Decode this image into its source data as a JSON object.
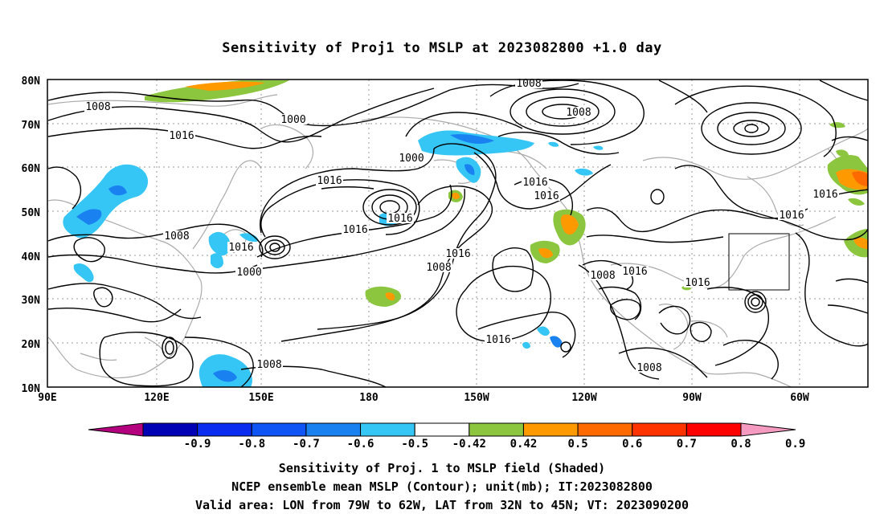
{
  "title": "Sensitivity of Proj1 to MSLP at 2023082800 +1.0 day",
  "lat_labels": [
    "80N",
    "70N",
    "60N",
    "50N",
    "40N",
    "30N",
    "20N",
    "10N"
  ],
  "lon_labels": [
    "90E",
    "120E",
    "150E",
    "180",
    "150W",
    "120W",
    "90W",
    "60W"
  ],
  "contour_labels": [
    "1008",
    "1000",
    "1016",
    "1008",
    "1016",
    "1000",
    "1008",
    "1016",
    "1016",
    "1016",
    "1000",
    "1008",
    "1016",
    "1016",
    "1016",
    "1016",
    "1016",
    "1008",
    "1016",
    "1008",
    "1016",
    "1016",
    "1008",
    "1008"
  ],
  "colorbar": {
    "labels": [
      "-0.9",
      "-0.8",
      "-0.7",
      "-0.6",
      "-0.5",
      "-0.42",
      "0.42",
      "0.5",
      "0.6",
      "0.7",
      "0.8",
      "0.9"
    ],
    "colors": [
      "#b4007f",
      "#0000b4",
      "#0a2cf0",
      "#0f55f5",
      "#1a82f0",
      "#35c6f5",
      "#ffffff",
      "#8cc63f",
      "#ff9900",
      "#ff6a00",
      "#ff3300",
      "#ff0000",
      "#f59ac0"
    ]
  },
  "box": {
    "description": "Valid area",
    "lon_from": "79W",
    "lon_to": "62W",
    "lat_from": "32N",
    "lat_to": "45N"
  },
  "captions": [
    "Sensitivity of Proj. 1 to MSLP field (Shaded)",
    "NCEP ensemble mean MSLP (Contour); unit(mb); IT:2023082800",
    "Valid area: LON from 79W to 62W, LAT from 32N to 45N; VT: 2023090200"
  ]
}
